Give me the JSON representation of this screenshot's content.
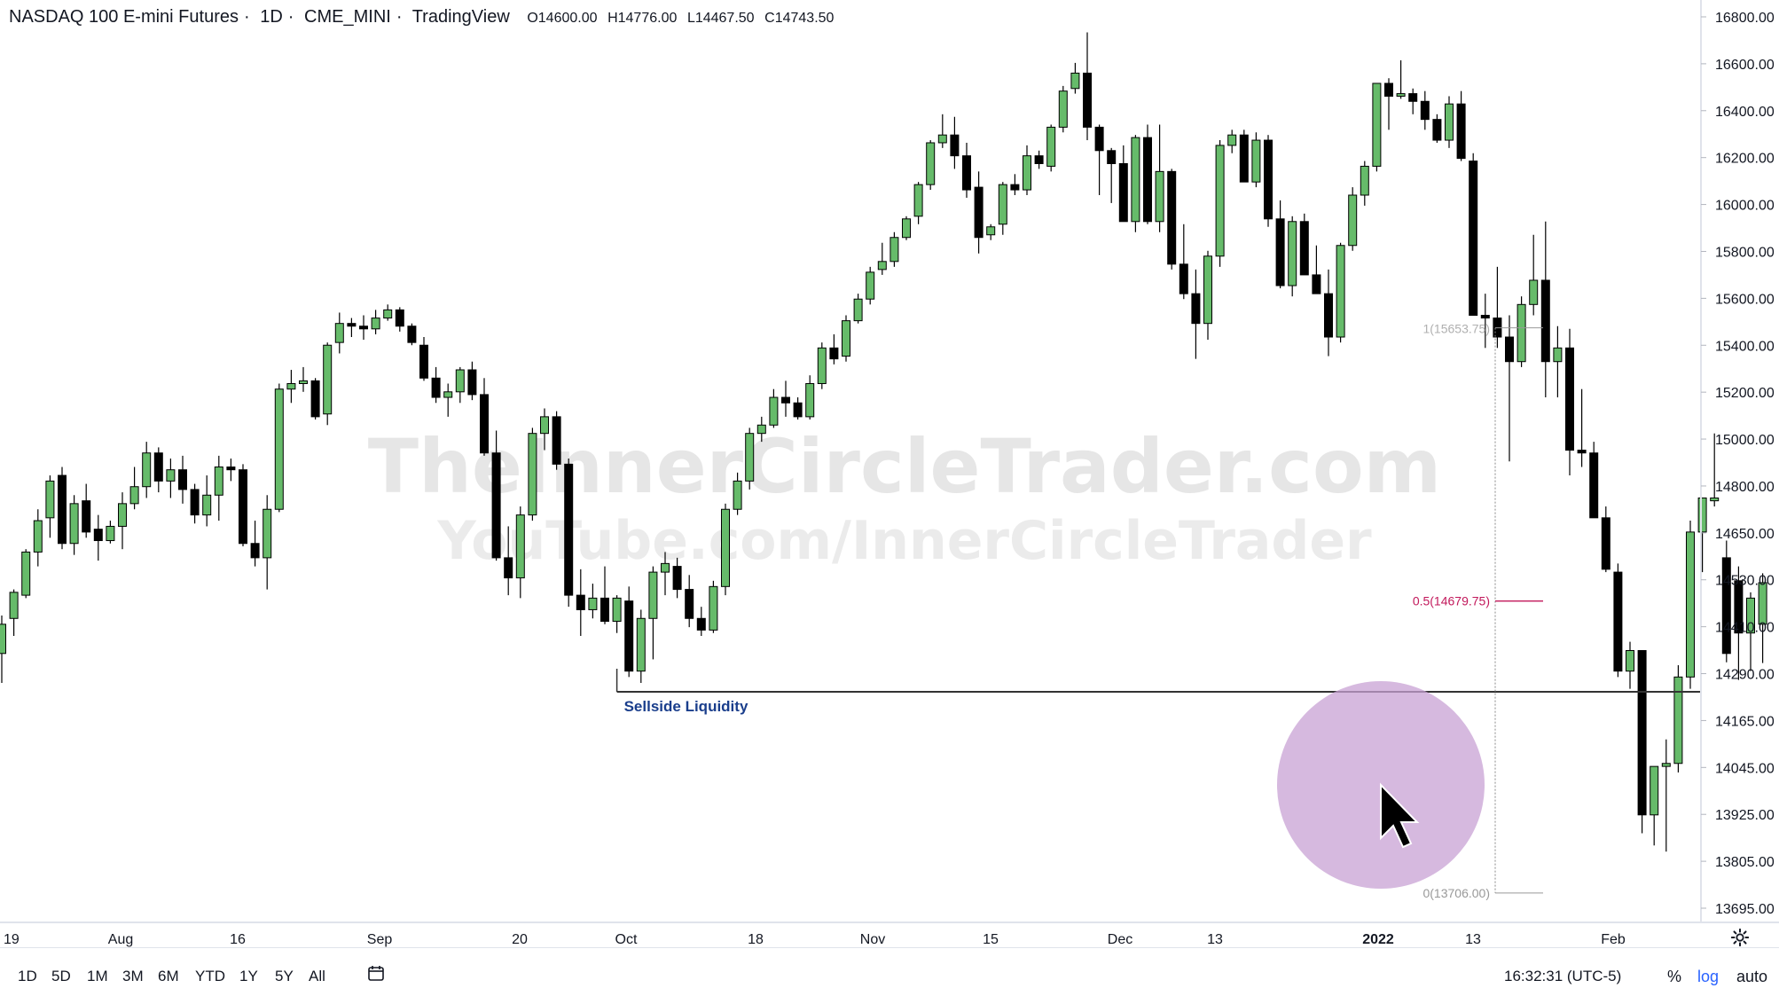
{
  "header": {
    "symbol_name": "NASDAQ 100 E-mini Futures",
    "interval": "1D",
    "exchange": "CME_MINI",
    "source": "TradingView",
    "ohlc": {
      "open": "O14600.00",
      "high": "H14776.00",
      "low": "L14467.50",
      "close": "C14743.50"
    }
  },
  "watermark": {
    "line1": "TheInnerCircleTrader.com",
    "line2": "YouTube.com/InnerCircleTrader"
  },
  "annotations": {
    "sellside_label": "Sellside Liquidity",
    "fib_top": "1(15653.75)",
    "fib_mid": "0.5(14679.75)",
    "fib_bottom": "0(13706.00)"
  },
  "time_axis": [
    "19",
    "Aug",
    "16",
    "Sep",
    "20",
    "Oct",
    "18",
    "Nov",
    "15",
    "Dec",
    "13",
    "2022",
    "13",
    "Feb"
  ],
  "price_axis": [
    "16800.00",
    "16600.00",
    "16400.00",
    "16200.00",
    "16000.00",
    "15800.00",
    "15600.00",
    "15400.00",
    "15200.00",
    "15000.00",
    "14800.00",
    "14650.00",
    "14530.00",
    "14410.00",
    "14290.00",
    "14165.00",
    "14045.00",
    "13925.00",
    "13805.00",
    "13695.00"
  ],
  "range_buttons": [
    "1D",
    "5D",
    "1M",
    "3M",
    "6M",
    "YTD",
    "1Y",
    "5Y",
    "All"
  ],
  "clock": "16:32:31 (UTC-5)",
  "options": {
    "percent": "%",
    "log": "log",
    "auto": "auto"
  },
  "colors": {
    "up": "#66bb6a",
    "down": "#000000",
    "accent": "#2962ff",
    "fib": "#c2185b",
    "highlight": "#c8a2d4"
  },
  "chart_data": {
    "type": "candlestick",
    "title": "NASDAQ 100 E-mini Futures · 1D · CME_MINI",
    "scale": "log",
    "ylim": [
      13640,
      16880
    ],
    "sellside_liquidity_level": 14370,
    "fib_levels": [
      {
        "label": "1(15653.75)",
        "value": 15653.75
      },
      {
        "label": "0.5(14679.75)",
        "value": 14679.75
      },
      {
        "label": "0(13706.00)",
        "value": 13706.0
      }
    ],
    "candles": [
      [
        14500,
        14630,
        14400,
        14600
      ],
      [
        14620,
        14720,
        14560,
        14710
      ],
      [
        14700,
        14860,
        14690,
        14850
      ],
      [
        14850,
        15000,
        14800,
        14960
      ],
      [
        14970,
        15120,
        14900,
        15100
      ],
      [
        15120,
        15150,
        14860,
        14880
      ],
      [
        14880,
        15050,
        14840,
        15020
      ],
      [
        15030,
        15090,
        14900,
        14920
      ],
      [
        14930,
        14980,
        14820,
        14890
      ],
      [
        14890,
        14960,
        14880,
        14940
      ],
      [
        14940,
        15060,
        14860,
        15020
      ],
      [
        15020,
        15150,
        15000,
        15080
      ],
      [
        15080,
        15240,
        15040,
        15200
      ],
      [
        15200,
        15220,
        15060,
        15100
      ],
      [
        15100,
        15180,
        15040,
        15140
      ],
      [
        15140,
        15190,
        15020,
        15070
      ],
      [
        15070,
        15090,
        14950,
        14980
      ],
      [
        14980,
        15120,
        14940,
        15050
      ],
      [
        15050,
        15190,
        14960,
        15150
      ],
      [
        15150,
        15180,
        15100,
        15140
      ],
      [
        15140,
        15160,
        14870,
        14880
      ],
      [
        14880,
        14960,
        14800,
        14830
      ],
      [
        14830,
        15050,
        14720,
        15000
      ],
      [
        15000,
        15450,
        14990,
        15430
      ],
      [
        15430,
        15500,
        15380,
        15450
      ],
      [
        15450,
        15510,
        15420,
        15460
      ],
      [
        15460,
        15470,
        15320,
        15330
      ],
      [
        15340,
        15600,
        15300,
        15590
      ],
      [
        15600,
        15710,
        15560,
        15670
      ],
      [
        15670,
        15690,
        15620,
        15660
      ],
      [
        15660,
        15700,
        15610,
        15650
      ],
      [
        15650,
        15720,
        15630,
        15690
      ],
      [
        15690,
        15740,
        15680,
        15720
      ],
      [
        15720,
        15730,
        15640,
        15660
      ],
      [
        15660,
        15670,
        15590,
        15600
      ],
      [
        15590,
        15620,
        15460,
        15470
      ],
      [
        15470,
        15510,
        15380,
        15400
      ],
      [
        15400,
        15450,
        15330,
        15420
      ],
      [
        15420,
        15510,
        15380,
        15500
      ],
      [
        15500,
        15530,
        15390,
        15410
      ],
      [
        15410,
        15470,
        15190,
        15200
      ],
      [
        15200,
        15280,
        14820,
        14830
      ],
      [
        14830,
        14940,
        14700,
        14760
      ],
      [
        14760,
        15010,
        14690,
        14980
      ],
      [
        14980,
        15290,
        14960,
        15270
      ],
      [
        15270,
        15360,
        15210,
        15330
      ],
      [
        15330,
        15350,
        15140,
        15160
      ],
      [
        15160,
        15180,
        14660,
        14700
      ],
      [
        14700,
        14790,
        14560,
        14650
      ],
      [
        14650,
        14740,
        14620,
        14690
      ],
      [
        14690,
        14800,
        14600,
        14610
      ],
      [
        14610,
        14700,
        14570,
        14690
      ],
      [
        14680,
        14730,
        14420,
        14440
      ],
      [
        14440,
        14650,
        14400,
        14620
      ],
      [
        14620,
        14800,
        14480,
        14780
      ],
      [
        14780,
        14850,
        14700,
        14810
      ],
      [
        14800,
        14830,
        14690,
        14720
      ],
      [
        14720,
        14770,
        14590,
        14620
      ],
      [
        14620,
        14660,
        14560,
        14580
      ],
      [
        14580,
        14750,
        14570,
        14730
      ],
      [
        14730,
        15020,
        14700,
        15000
      ],
      [
        15000,
        15130,
        14980,
        15100
      ],
      [
        15100,
        15290,
        15070,
        15270
      ],
      [
        15270,
        15330,
        15240,
        15300
      ],
      [
        15300,
        15430,
        15290,
        15400
      ],
      [
        15400,
        15460,
        15330,
        15380
      ],
      [
        15380,
        15400,
        15320,
        15330
      ],
      [
        15330,
        15480,
        15320,
        15450
      ],
      [
        15450,
        15600,
        15430,
        15580
      ],
      [
        15580,
        15630,
        15520,
        15540
      ],
      [
        15550,
        15700,
        15530,
        15680
      ],
      [
        15680,
        15780,
        15670,
        15760
      ],
      [
        15760,
        15880,
        15740,
        15860
      ],
      [
        15870,
        15970,
        15850,
        15900
      ],
      [
        15900,
        16010,
        15880,
        15990
      ],
      [
        15990,
        16070,
        15980,
        16060
      ],
      [
        16070,
        16200,
        16040,
        16190
      ],
      [
        16190,
        16360,
        16170,
        16350
      ],
      [
        16350,
        16460,
        16330,
        16380
      ],
      [
        16380,
        16450,
        16250,
        16300
      ],
      [
        16300,
        16350,
        16140,
        16170
      ],
      [
        16180,
        16240,
        15930,
        15990
      ],
      [
        16000,
        16040,
        15980,
        16030
      ],
      [
        16040,
        16200,
        16000,
        16190
      ],
      [
        16190,
        16230,
        16150,
        16170
      ],
      [
        16170,
        16340,
        16150,
        16300
      ],
      [
        16300,
        16320,
        16250,
        16270
      ],
      [
        16260,
        16420,
        16240,
        16410
      ],
      [
        16410,
        16570,
        16390,
        16550
      ],
      [
        16560,
        16660,
        16540,
        16620
      ],
      [
        16620,
        16780,
        16360,
        16410
      ],
      [
        16410,
        16420,
        16150,
        16320
      ],
      [
        16320,
        16330,
        16120,
        16270
      ],
      [
        16270,
        16340,
        16050,
        16050
      ],
      [
        16050,
        16380,
        16010,
        16370
      ],
      [
        16370,
        16420,
        16040,
        16050
      ],
      [
        16050,
        16420,
        16010,
        16240
      ],
      [
        16240,
        16250,
        15870,
        15890
      ],
      [
        15890,
        16040,
        15760,
        15780
      ],
      [
        15780,
        15870,
        15540,
        15670
      ],
      [
        15670,
        15940,
        15610,
        15920
      ],
      [
        15920,
        16360,
        15880,
        16340
      ],
      [
        16340,
        16400,
        16310,
        16380
      ],
      [
        16380,
        16400,
        16200,
        16200
      ],
      [
        16200,
        16390,
        16180,
        16360
      ],
      [
        16360,
        16380,
        16030,
        16060
      ],
      [
        16060,
        16130,
        15800,
        15810
      ],
      [
        15810,
        16070,
        15770,
        16050
      ],
      [
        16050,
        16080,
        15850,
        15850
      ],
      [
        15850,
        15960,
        15780,
        15780
      ],
      [
        15780,
        15870,
        15550,
        15620
      ],
      [
        15620,
        15970,
        15600,
        15960
      ],
      [
        15960,
        16180,
        15940,
        16150
      ],
      [
        16150,
        16280,
        16110,
        16260
      ],
      [
        16260,
        16580,
        16240,
        16580
      ],
      [
        16580,
        16600,
        16400,
        16530
      ],
      [
        16530,
        16670,
        16520,
        16540
      ],
      [
        16540,
        16560,
        16460,
        16510
      ],
      [
        16510,
        16550,
        16400,
        16440
      ],
      [
        16440,
        16460,
        16350,
        16360
      ],
      [
        16360,
        16530,
        16330,
        16500
      ],
      [
        16500,
        16550,
        16280,
        16290
      ],
      [
        16280,
        16310,
        15700,
        15700
      ],
      [
        15700,
        15780,
        15580,
        15690
      ],
      [
        15690,
        15880,
        15580,
        15620
      ],
      [
        15620,
        15700,
        15170,
        15530
      ],
      [
        15530,
        15770,
        15510,
        15740
      ],
      [
        15740,
        16000,
        15700,
        15830
      ],
      [
        15830,
        16050,
        15400,
        15530
      ],
      [
        15530,
        15660,
        15400,
        15580
      ],
      [
        15580,
        15650,
        15120,
        15210
      ],
      [
        15210,
        15430,
        15150,
        15200
      ],
      [
        15200,
        15240,
        14970,
        14970
      ],
      [
        14970,
        15010,
        14780,
        14790
      ],
      [
        14780,
        14810,
        14420,
        14440
      ],
      [
        14440,
        14540,
        14380,
        14510
      ],
      [
        14510,
        14510,
        13900,
        13960
      ],
      [
        13960,
        14100,
        13860,
        14120
      ],
      [
        14120,
        14210,
        13840,
        14130
      ],
      [
        14130,
        14460,
        14100,
        14420
      ],
      [
        14420,
        14960,
        14380,
        14920
      ],
      [
        14920,
        15020,
        14780,
        15040
      ],
      [
        15030,
        15270,
        15010,
        15040
      ],
      [
        14830,
        14890,
        14470,
        14500
      ],
      [
        14750,
        14800,
        14410,
        14570
      ],
      [
        14570,
        14710,
        14440,
        14690
      ],
      [
        14600,
        14776,
        14467.5,
        14743.5
      ]
    ]
  }
}
